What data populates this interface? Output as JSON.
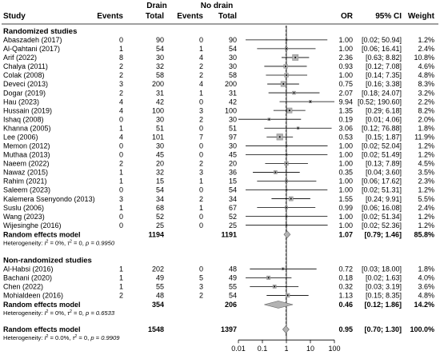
{
  "header": {
    "study": "Study",
    "drain_group": "Drain",
    "nodrain_group": "No drain",
    "events": "Events",
    "total": "Total",
    "or": "OR",
    "ci": "95% CI",
    "weight": "Weight"
  },
  "chart_data": {
    "type": "forest",
    "x_scale": "log",
    "xlim": [
      0.01,
      100
    ],
    "x_ticks": [
      "0.01",
      "0.1",
      "1",
      "10",
      "100"
    ],
    "reference_line": 1,
    "pooled_line": 0.95,
    "groups": [
      {
        "title": "Randomized studies",
        "studies": [
          {
            "name": "Abaszadeh (2017)",
            "e1": "0",
            "n1": "90",
            "e2": "0",
            "n2": "90",
            "or": 1.0,
            "lo": 0.02,
            "hi": 50.94,
            "or_t": "1.00",
            "ci_t": "[0.02; 50.94]",
            "w_t": "1.2%",
            "w": 1.2
          },
          {
            "name": "Al-Qahtani (2017)",
            "e1": "1",
            "n1": "54",
            "e2": "1",
            "n2": "54",
            "or": 1.0,
            "lo": 0.06,
            "hi": 16.41,
            "or_t": "1.00",
            "ci_t": "[0.06; 16.41]",
            "w_t": "2.4%",
            "w": 2.4
          },
          {
            "name": "Arif (2022)",
            "e1": "8",
            "n1": "30",
            "e2": "4",
            "n2": "30",
            "or": 2.36,
            "lo": 0.63,
            "hi": 8.82,
            "or_t": "2.36",
            "ci_t": "[0.63; 8.82]",
            "w_t": "10.8%",
            "w": 10.8
          },
          {
            "name": "Chalya (2011)",
            "e1": "2",
            "n1": "32",
            "e2": "2",
            "n2": "30",
            "or": 0.93,
            "lo": 0.12,
            "hi": 7.08,
            "or_t": "0.93",
            "ci_t": "[0.12; 7.08]",
            "w_t": "4.6%",
            "w": 4.6
          },
          {
            "name": "Colak (2008)",
            "e1": "2",
            "n1": "58",
            "e2": "2",
            "n2": "58",
            "or": 1.0,
            "lo": 0.14,
            "hi": 7.35,
            "or_t": "1.00",
            "ci_t": "[0.14; 7.35]",
            "w_t": "4.8%",
            "w": 4.8
          },
          {
            "name": "Deveci (2013)",
            "e1": "3",
            "n1": "200",
            "e2": "4",
            "n2": "200",
            "or": 0.75,
            "lo": 0.16,
            "hi": 3.38,
            "or_t": "0.75",
            "ci_t": "[0.16; 3.38]",
            "w_t": "8.3%",
            "w": 8.3
          },
          {
            "name": "Dogar (2019)",
            "e1": "2",
            "n1": "31",
            "e2": "1",
            "n2": "31",
            "or": 2.07,
            "lo": 0.18,
            "hi": 24.07,
            "or_t": "2.07",
            "ci_t": "[0.18; 24.07]",
            "w_t": "3.2%",
            "w": 3.2
          },
          {
            "name": "Hau (2023)",
            "e1": "4",
            "n1": "42",
            "e2": "0",
            "n2": "42",
            "or": 9.94,
            "lo": 0.52,
            "hi": 190.6,
            "or_t": "9.94",
            "ci_t": "[0.52; 190.60]",
            "w_t": "2.2%",
            "w": 2.2
          },
          {
            "name": "Hussain (2019)",
            "e1": "4",
            "n1": "100",
            "e2": "3",
            "n2": "100",
            "or": 1.35,
            "lo": 0.29,
            "hi": 6.18,
            "or_t": "1.35",
            "ci_t": "[0.29; 6.18]",
            "w_t": "8.2%",
            "w": 8.2
          },
          {
            "name": "Ishaq (2008)",
            "e1": "0",
            "n1": "30",
            "e2": "2",
            "n2": "30",
            "or": 0.19,
            "lo": 0.01,
            "hi": 4.06,
            "or_t": "0.19",
            "ci_t": "[0.01; 4.06]",
            "w_t": "2.0%",
            "w": 2.0
          },
          {
            "name": "Khanna (2005)",
            "e1": "1",
            "n1": "51",
            "e2": "0",
            "n2": "51",
            "or": 3.06,
            "lo": 0.12,
            "hi": 76.88,
            "or_t": "3.06",
            "ci_t": "[0.12; 76.88]",
            "w_t": "1.8%",
            "w": 1.8
          },
          {
            "name": "Lee (2006)",
            "e1": "4",
            "n1": "101",
            "e2": "7",
            "n2": "97",
            "or": 0.53,
            "lo": 0.15,
            "hi": 1.87,
            "or_t": "0.53",
            "ci_t": "[0.15; 1.87]",
            "w_t": "11.9%",
            "w": 11.9
          },
          {
            "name": "Memon (2012)",
            "e1": "0",
            "n1": "30",
            "e2": "0",
            "n2": "30",
            "or": 1.0,
            "lo": 0.02,
            "hi": 52.04,
            "or_t": "1.00",
            "ci_t": "[0.02; 52.04]",
            "w_t": "1.2%",
            "w": 1.2
          },
          {
            "name": "Muthaa (2013)",
            "e1": "0",
            "n1": "45",
            "e2": "0",
            "n2": "45",
            "or": 1.0,
            "lo": 0.02,
            "hi": 51.49,
            "or_t": "1.00",
            "ci_t": "[0.02; 51.49]",
            "w_t": "1.2%",
            "w": 1.2
          },
          {
            "name": "Naeem (2022)",
            "e1": "2",
            "n1": "20",
            "e2": "2",
            "n2": "20",
            "or": 1.0,
            "lo": 0.13,
            "hi": 7.89,
            "or_t": "1.00",
            "ci_t": "[0.13; 7.89]",
            "w_t": "4.5%",
            "w": 4.5
          },
          {
            "name": "Nawaz (2015)",
            "e1": "1",
            "n1": "32",
            "e2": "3",
            "n2": "36",
            "or": 0.35,
            "lo": 0.04,
            "hi": 3.6,
            "or_t": "0.35",
            "ci_t": "[0.04; 3.60]",
            "w_t": "3.5%",
            "w": 3.5
          },
          {
            "name": "Rahim (2021)",
            "e1": "1",
            "n1": "15",
            "e2": "1",
            "n2": "15",
            "or": 1.0,
            "lo": 0.06,
            "hi": 17.62,
            "or_t": "1.00",
            "ci_t": "[0.06; 17.62]",
            "w_t": "2.3%",
            "w": 2.3
          },
          {
            "name": "Saleem (2023)",
            "e1": "0",
            "n1": "54",
            "e2": "0",
            "n2": "54",
            "or": 1.0,
            "lo": 0.02,
            "hi": 51.31,
            "or_t": "1.00",
            "ci_t": "[0.02; 51.31]",
            "w_t": "1.2%",
            "w": 1.2
          },
          {
            "name": "Kalemera Ssenyondo (2013)",
            "e1": "3",
            "n1": "34",
            "e2": "2",
            "n2": "34",
            "or": 1.55,
            "lo": 0.24,
            "hi": 9.91,
            "or_t": "1.55",
            "ci_t": "[0.24; 9.91]",
            "w_t": "5.5%",
            "w": 5.5
          },
          {
            "name": "Suslu (2006)",
            "e1": "1",
            "n1": "68",
            "e2": "1",
            "n2": "67",
            "or": 0.99,
            "lo": 0.06,
            "hi": 16.08,
            "or_t": "0.99",
            "ci_t": "[0.06; 16.08]",
            "w_t": "2.4%",
            "w": 2.4
          },
          {
            "name": "Wang (2023)",
            "e1": "0",
            "n1": "52",
            "e2": "0",
            "n2": "52",
            "or": 1.0,
            "lo": 0.02,
            "hi": 51.34,
            "or_t": "1.00",
            "ci_t": "[0.02; 51.34]",
            "w_t": "1.2%",
            "w": 1.2
          },
          {
            "name": "Wijesinghe (2016)",
            "e1": "0",
            "n1": "25",
            "e2": "0",
            "n2": "25",
            "or": 1.0,
            "lo": 0.02,
            "hi": 52.36,
            "or_t": "1.00",
            "ci_t": "[0.02; 52.36]",
            "w_t": "1.2%",
            "w": 1.2
          }
        ],
        "pooled": {
          "label": "Random effects model",
          "n1": "1194",
          "n2": "1191",
          "or": 1.07,
          "lo": 0.79,
          "hi": 1.46,
          "or_t": "1.07",
          "ci_t": "[0.79; 1.46]",
          "w_t": "85.8%"
        },
        "heterogeneity": {
          "prefix": "Heterogeneity: ",
          "i2": "I",
          "i2_val": " = 0%, ",
          "tau2": "τ",
          "tau2_val": " = 0, ",
          "p": "p = 0.9950"
        }
      },
      {
        "title": "Non-randomized studies",
        "studies": [
          {
            "name": "Al-Habsi (2016)",
            "e1": "1",
            "n1": "202",
            "e2": "0",
            "n2": "48",
            "or": 0.72,
            "lo": 0.03,
            "hi": 18.0,
            "or_t": "0.72",
            "ci_t": "[0.03; 18.00]",
            "w_t": "1.8%",
            "w": 1.8
          },
          {
            "name": "Bachani (2020)",
            "e1": "1",
            "n1": "49",
            "e2": "5",
            "n2": "49",
            "or": 0.18,
            "lo": 0.02,
            "hi": 1.63,
            "or_t": "0.18",
            "ci_t": "[0.02; 1.63]",
            "w_t": "4.0%",
            "w": 4.0
          },
          {
            "name": "Chen (2022)",
            "e1": "1",
            "n1": "55",
            "e2": "3",
            "n2": "55",
            "or": 0.32,
            "lo": 0.03,
            "hi": 3.19,
            "or_t": "0.32",
            "ci_t": "[0.03; 3.19]",
            "w_t": "3.6%",
            "w": 3.6
          },
          {
            "name": "Mohialdeen (2016)",
            "e1": "2",
            "n1": "48",
            "e2": "2",
            "n2": "54",
            "or": 1.13,
            "lo": 0.15,
            "hi": 8.35,
            "or_t": "1.13",
            "ci_t": "[0.15; 8.35]",
            "w_t": "4.8%",
            "w": 4.8
          }
        ],
        "pooled": {
          "label": "Random effects model",
          "n1": "354",
          "n2": "206",
          "or": 0.46,
          "lo": 0.12,
          "hi": 1.86,
          "or_t": "0.46",
          "ci_t": "[0.12; 1.86]",
          "w_t": "14.2%"
        },
        "heterogeneity": {
          "prefix": "Heterogeneity: ",
          "i2": "I",
          "i2_val": " = 0%, ",
          "tau2": "τ",
          "tau2_val": " = 0, ",
          "p": "p = 0.6533"
        }
      }
    ],
    "overall": {
      "pooled": {
        "label": "Random effects model",
        "n1": "1548",
        "n2": "1397",
        "or": 0.95,
        "lo": 0.7,
        "hi": 1.3,
        "or_t": "0.95",
        "ci_t": "[0.70; 1.30]",
        "w_t": "100.0%"
      },
      "heterogeneity": {
        "prefix": "Heterogeneity: ",
        "i2": "I",
        "i2_val": " = 0.0%, ",
        "tau2": "τ",
        "tau2_val": " = 0, ",
        "p": "p = 0.9909"
      }
    }
  }
}
